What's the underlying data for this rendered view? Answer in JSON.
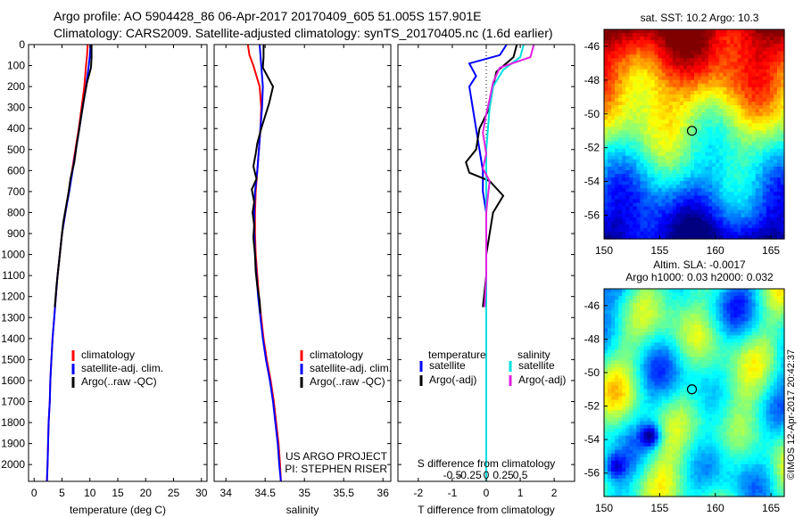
{
  "header": {
    "line1": "Argo profile: AO 5904428_86 06-Apr-2017 20170409_605 51.005S 157.901E",
    "line2": "Climatology: CARS2009. Satellite-adjusted climatology: synTS_20170405.nc (1.6d earlier)"
  },
  "colors": {
    "climatology": "#ff0000",
    "satellite": "#0000ff",
    "argo": "#000000",
    "salinity_satellite": "#00e0e0",
    "salinity_argo": "#e020e0"
  },
  "chart_data": [
    {
      "type": "line",
      "panel": "temperature",
      "xlabel": "temperature (deg C)",
      "xlim": [
        -1,
        31
      ],
      "xticks": [
        0,
        5,
        10,
        15,
        20,
        25,
        30
      ],
      "ylim": [
        2080,
        0
      ],
      "yticks": [
        0,
        100,
        200,
        300,
        400,
        500,
        600,
        700,
        800,
        900,
        1000,
        1100,
        1200,
        1300,
        1400,
        1500,
        1600,
        1700,
        1800,
        1900,
        2000
      ],
      "legend": [
        "climatology",
        "satellite-adj. clim.",
        "Argo(..raw -QC)"
      ],
      "series": [
        {
          "name": "climatology",
          "color": "#ff0000",
          "points": [
            [
              9.6,
              0
            ],
            [
              9.5,
              50
            ],
            [
              9.3,
              100
            ],
            [
              9.0,
              200
            ],
            [
              8.5,
              300
            ],
            [
              8.0,
              400
            ],
            [
              7.4,
              500
            ],
            [
              6.8,
              600
            ],
            [
              6.2,
              700
            ],
            [
              5.6,
              800
            ],
            [
              5.0,
              900
            ],
            [
              4.6,
              1000
            ],
            [
              4.2,
              1100
            ],
            [
              3.9,
              1200
            ],
            [
              3.6,
              1300
            ],
            [
              3.3,
              1400
            ],
            [
              3.1,
              1500
            ],
            [
              2.9,
              1600
            ],
            [
              2.8,
              1700
            ],
            [
              2.6,
              1800
            ],
            [
              2.5,
              1900
            ],
            [
              2.4,
              2000
            ],
            [
              2.3,
              2080
            ]
          ]
        },
        {
          "name": "satellite-adj. clim.",
          "color": "#0000ff",
          "points": [
            [
              10.1,
              0
            ],
            [
              10.0,
              50
            ],
            [
              9.8,
              100
            ],
            [
              9.3,
              200
            ],
            [
              8.7,
              300
            ],
            [
              8.1,
              400
            ],
            [
              7.5,
              500
            ],
            [
              6.9,
              600
            ],
            [
              6.3,
              700
            ],
            [
              5.6,
              800
            ],
            [
              5.0,
              900
            ],
            [
              4.6,
              1000
            ],
            [
              4.2,
              1100
            ],
            [
              3.9,
              1200
            ],
            [
              3.6,
              1300
            ],
            [
              3.3,
              1400
            ],
            [
              3.1,
              1500
            ],
            [
              2.9,
              1600
            ],
            [
              2.8,
              1700
            ],
            [
              2.6,
              1800
            ],
            [
              2.5,
              1900
            ],
            [
              2.4,
              2000
            ],
            [
              2.3,
              2080
            ]
          ]
        },
        {
          "name": "Argo(..raw -QC)",
          "color": "#000000",
          "points": [
            [
              10.3,
              0
            ],
            [
              10.3,
              60
            ],
            [
              10.2,
              110
            ],
            [
              9.5,
              180
            ],
            [
              9.0,
              250
            ],
            [
              8.5,
              330
            ],
            [
              8.1,
              400
            ],
            [
              7.6,
              480
            ],
            [
              7.2,
              560
            ],
            [
              6.5,
              640
            ],
            [
              6.2,
              700
            ],
            [
              5.8,
              760
            ],
            [
              5.2,
              850
            ],
            [
              4.8,
              950
            ],
            [
              4.4,
              1050
            ],
            [
              4.0,
              1150
            ],
            [
              3.7,
              1250
            ]
          ]
        }
      ]
    },
    {
      "type": "line",
      "panel": "salinity",
      "xlabel": "salinity",
      "xlim": [
        33.85,
        36.1
      ],
      "xticks": [
        34,
        34.5,
        35,
        35.5,
        36
      ],
      "ylim": [
        2080,
        0
      ],
      "legend": [
        "climatology",
        "satellite-adj. clim.",
        "Argo(..raw -QC)"
      ],
      "annotation": [
        "US ARGO PROJECT",
        "PI: STEPHEN RISER"
      ],
      "series": [
        {
          "name": "climatology",
          "color": "#ff0000",
          "points": [
            [
              34.28,
              0
            ],
            [
              34.3,
              50
            ],
            [
              34.35,
              100
            ],
            [
              34.43,
              200
            ],
            [
              34.45,
              300
            ],
            [
              34.44,
              400
            ],
            [
              34.42,
              500
            ],
            [
              34.4,
              600
            ],
            [
              34.38,
              700
            ],
            [
              34.37,
              800
            ],
            [
              34.37,
              900
            ],
            [
              34.38,
              1000
            ],
            [
              34.4,
              1100
            ],
            [
              34.42,
              1200
            ],
            [
              34.45,
              1300
            ],
            [
              34.48,
              1400
            ],
            [
              34.52,
              1500
            ],
            [
              34.57,
              1600
            ],
            [
              34.61,
              1700
            ],
            [
              34.64,
              1800
            ],
            [
              34.67,
              1900
            ],
            [
              34.69,
              2000
            ],
            [
              34.7,
              2080
            ]
          ]
        },
        {
          "name": "satellite-adj. clim.",
          "color": "#0000ff",
          "points": [
            [
              34.43,
              0
            ],
            [
              34.44,
              50
            ],
            [
              34.45,
              100
            ],
            [
              34.47,
              200
            ],
            [
              34.46,
              300
            ],
            [
              34.44,
              400
            ],
            [
              34.42,
              500
            ],
            [
              34.4,
              600
            ],
            [
              34.37,
              700
            ],
            [
              34.36,
              800
            ],
            [
              34.36,
              900
            ],
            [
              34.37,
              1000
            ],
            [
              34.39,
              1100
            ],
            [
              34.41,
              1200
            ],
            [
              34.44,
              1300
            ],
            [
              34.47,
              1400
            ],
            [
              34.51,
              1500
            ],
            [
              34.56,
              1600
            ],
            [
              34.6,
              1700
            ],
            [
              34.63,
              1800
            ],
            [
              34.66,
              1900
            ],
            [
              34.68,
              2000
            ],
            [
              34.7,
              2080
            ]
          ]
        },
        {
          "name": "Argo(..raw -QC)",
          "color": "#000000",
          "points": [
            [
              34.48,
              0
            ],
            [
              34.48,
              60
            ],
            [
              34.47,
              110
            ],
            [
              34.6,
              200
            ],
            [
              34.55,
              280
            ],
            [
              34.5,
              340
            ],
            [
              34.45,
              400
            ],
            [
              34.4,
              470
            ],
            [
              34.38,
              520
            ],
            [
              34.35,
              580
            ],
            [
              34.39,
              640
            ],
            [
              34.33,
              690
            ],
            [
              34.36,
              750
            ],
            [
              34.34,
              800
            ],
            [
              34.36,
              860
            ],
            [
              34.35,
              920
            ],
            [
              34.37,
              1000
            ],
            [
              34.38,
              1080
            ],
            [
              34.4,
              1150
            ],
            [
              34.43,
              1220
            ],
            [
              34.44,
              1280
            ]
          ]
        }
      ]
    },
    {
      "type": "line",
      "panel": "difference",
      "xlabel": "T difference from climatology",
      "xlabel2": "S difference from climatology",
      "xlim": [
        -2.6,
        2.6
      ],
      "xticks": [
        -2,
        -1,
        0,
        1,
        2
      ],
      "xticks_salinity": [
        "-0.5",
        "-0.25",
        "0",
        "0.25",
        "0.5"
      ],
      "ylim": [
        2080,
        0
      ],
      "legend": {
        "temperature_title": "temperature",
        "salinity_title": "salinity",
        "temperature": [
          "satellite",
          "Argo(-adj)"
        ],
        "salinity": [
          "satellite",
          "Argo(-adj)"
        ]
      },
      "series": [
        {
          "name": "temperature satellite",
          "color": "#0000ff",
          "points": [
            [
              0.6,
              0
            ],
            [
              0.4,
              50
            ],
            [
              -0.5,
              90
            ],
            [
              -0.3,
              150
            ],
            [
              -0.5,
              200
            ],
            [
              -0.4,
              300
            ],
            [
              -0.3,
              400
            ],
            [
              -0.2,
              500
            ],
            [
              -0.1,
              600
            ],
            [
              -0.1,
              700
            ],
            [
              0,
              800
            ],
            [
              0,
              1000
            ],
            [
              0,
              1400
            ],
            [
              0,
              1800
            ],
            [
              0,
              2080
            ]
          ]
        },
        {
          "name": "temperature Argo(-adj)",
          "color": "#000000",
          "points": [
            [
              0.9,
              0
            ],
            [
              0.8,
              60
            ],
            [
              0.3,
              130
            ],
            [
              0.2,
              200
            ],
            [
              0.1,
              300
            ],
            [
              -0.2,
              400
            ],
            [
              -0.3,
              500
            ],
            [
              -0.6,
              560
            ],
            [
              -0.5,
              610
            ],
            [
              0.1,
              650
            ],
            [
              0.5,
              720
            ],
            [
              0.2,
              800
            ],
            [
              0.1,
              900
            ],
            [
              0,
              1000
            ],
            [
              0,
              1100
            ],
            [
              -0.1,
              1250
            ]
          ]
        },
        {
          "name": "salinity satellite",
          "color": "#00e0e0",
          "points": [
            [
              1.1,
              0
            ],
            [
              1.0,
              60
            ],
            [
              0.5,
              120
            ],
            [
              0.2,
              200
            ],
            [
              0.1,
              300
            ],
            [
              0.05,
              400
            ],
            [
              0,
              500
            ],
            [
              0,
              600
            ],
            [
              0,
              800
            ],
            [
              0,
              1000
            ],
            [
              0,
              1500
            ],
            [
              0,
              2080
            ]
          ]
        },
        {
          "name": "salinity Argo(-adj)",
          "color": "#e020e0",
          "points": [
            [
              1.4,
              0
            ],
            [
              1.3,
              60
            ],
            [
              0.4,
              110
            ],
            [
              0.2,
              180
            ],
            [
              0.1,
              260
            ],
            [
              0,
              330
            ],
            [
              -0.1,
              420
            ],
            [
              0,
              520
            ],
            [
              -0.1,
              590
            ],
            [
              0.1,
              650
            ],
            [
              0.05,
              720
            ],
            [
              0,
              800
            ],
            [
              0,
              900
            ],
            [
              0,
              1000
            ],
            [
              0,
              1100
            ],
            [
              -0.05,
              1250
            ]
          ]
        }
      ]
    },
    {
      "type": "heatmap",
      "panel": "sst-map",
      "title": "sat. SST: 10.2  Argo: 10.3",
      "xlim": [
        150,
        166.2
      ],
      "ylim": [
        -57.4,
        -45
      ],
      "xticks": [
        150,
        155,
        160,
        165
      ],
      "yticks": [
        -46,
        -48,
        -50,
        -52,
        -54,
        -56
      ],
      "marker": {
        "lon": 157.9,
        "lat": -51.0
      }
    },
    {
      "type": "heatmap",
      "panel": "sla-map",
      "title": "Altim. SLA: -0.0017",
      "title2": "Argo h1000: 0.03 h2000: 0.032",
      "xlim": [
        150,
        166.2
      ],
      "ylim": [
        -57.4,
        -45
      ],
      "xticks": [
        150,
        155,
        160,
        165
      ],
      "yticks": [
        -46,
        -48,
        -50,
        -52,
        -54,
        -56
      ],
      "marker": {
        "lon": 157.9,
        "lat": -51.0
      }
    }
  ],
  "copyright": "©IMOS 12-Apr-2017 20:42:37"
}
